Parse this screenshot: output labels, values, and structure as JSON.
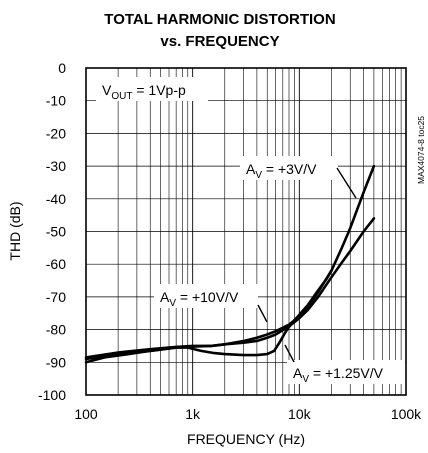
{
  "chart_data": {
    "type": "line",
    "title": [
      "TOTAL HARMONIC DISTORTION",
      "vs. FREQUENCY"
    ],
    "xlabel": "FREQUENCY (Hz)",
    "ylabel": "THD (dB)",
    "x_scale": "log",
    "xlim": [
      100,
      100000
    ],
    "ylim": [
      -100,
      0
    ],
    "x_ticks": [
      {
        "value": 100,
        "label": "100"
      },
      {
        "value": 1000,
        "label": "1k"
      },
      {
        "value": 10000,
        "label": "10k"
      },
      {
        "value": 100000,
        "label": "100k"
      }
    ],
    "y_ticks": [
      {
        "value": 0,
        "label": "0"
      },
      {
        "value": -10,
        "label": "-10"
      },
      {
        "value": -20,
        "label": "-20"
      },
      {
        "value": -30,
        "label": "-30"
      },
      {
        "value": -40,
        "label": "-40"
      },
      {
        "value": -50,
        "label": "-50"
      },
      {
        "value": -60,
        "label": "-60"
      },
      {
        "value": -70,
        "label": "-70"
      },
      {
        "value": -80,
        "label": "-80"
      },
      {
        "value": -90,
        "label": "-90"
      },
      {
        "value": -100,
        "label": "-100"
      }
    ],
    "grid": true,
    "series": [
      {
        "points": [
          [
            100,
            -90
          ],
          [
            150,
            -88.5
          ],
          [
            250,
            -87.5
          ],
          [
            400,
            -86.5
          ],
          [
            700,
            -85.5
          ],
          [
            1000,
            -85.2
          ],
          [
            1500,
            -85
          ],
          [
            2000,
            -84.5
          ],
          [
            3000,
            -83.5
          ],
          [
            4000,
            -82.5
          ],
          [
            5000,
            -81.5
          ],
          [
            6000,
            -80.5
          ],
          [
            8000,
            -78.5
          ],
          [
            10000,
            -76
          ],
          [
            12000,
            -73
          ],
          [
            15000,
            -68.5
          ],
          [
            20000,
            -62
          ],
          [
            25000,
            -55
          ],
          [
            30000,
            -49
          ],
          [
            40000,
            -38
          ],
          [
            50000,
            -30
          ]
        ]
      },
      {
        "points": [
          [
            100,
            -88.5
          ],
          [
            200,
            -87
          ],
          [
            400,
            -86
          ],
          [
            700,
            -85.3
          ],
          [
            1000,
            -85
          ],
          [
            1500,
            -85
          ],
          [
            2000,
            -84.5
          ],
          [
            3000,
            -84
          ],
          [
            4000,
            -83.5
          ],
          [
            5000,
            -82.5
          ],
          [
            6000,
            -81.5
          ],
          [
            8000,
            -79
          ],
          [
            10000,
            -76.5
          ],
          [
            12000,
            -74
          ],
          [
            15000,
            -70
          ],
          [
            20000,
            -64
          ],
          [
            25000,
            -59.5
          ],
          [
            30000,
            -56
          ],
          [
            40000,
            -50
          ],
          [
            50000,
            -46
          ]
        ]
      },
      {
        "points": [
          [
            100,
            -89
          ],
          [
            200,
            -87.5
          ],
          [
            400,
            -86.5
          ],
          [
            700,
            -85.5
          ],
          [
            900,
            -85.5
          ],
          [
            1200,
            -86.5
          ],
          [
            1600,
            -87.2
          ],
          [
            2000,
            -87.5
          ],
          [
            3000,
            -87.8
          ],
          [
            4000,
            -87.8
          ],
          [
            5000,
            -87.5
          ],
          [
            5800,
            -86.5
          ],
          [
            6500,
            -84
          ],
          [
            7500,
            -80.5
          ],
          [
            8500,
            -78
          ],
          [
            10000,
            -75.5
          ],
          [
            12000,
            -72.5
          ],
          [
            15000,
            -68
          ],
          [
            18000,
            -64.5
          ],
          [
            20000,
            -62
          ]
        ]
      }
    ],
    "annotations": [
      {
        "main": "V",
        "sub": "OUT",
        "rest": " = 1Vp-p"
      },
      {
        "main": "A",
        "sub": "V",
        "rest": " = +3V/V"
      },
      {
        "main": "A",
        "sub": "V",
        "rest": " = +10V/V"
      },
      {
        "main": "A",
        "sub": "V",
        "rest": " = +1.25V/V"
      }
    ],
    "side_label": "MAX4074-8 toc25",
    "colors": {
      "line": "#000000",
      "grid": "#000000",
      "background": "#ffffff"
    }
  }
}
